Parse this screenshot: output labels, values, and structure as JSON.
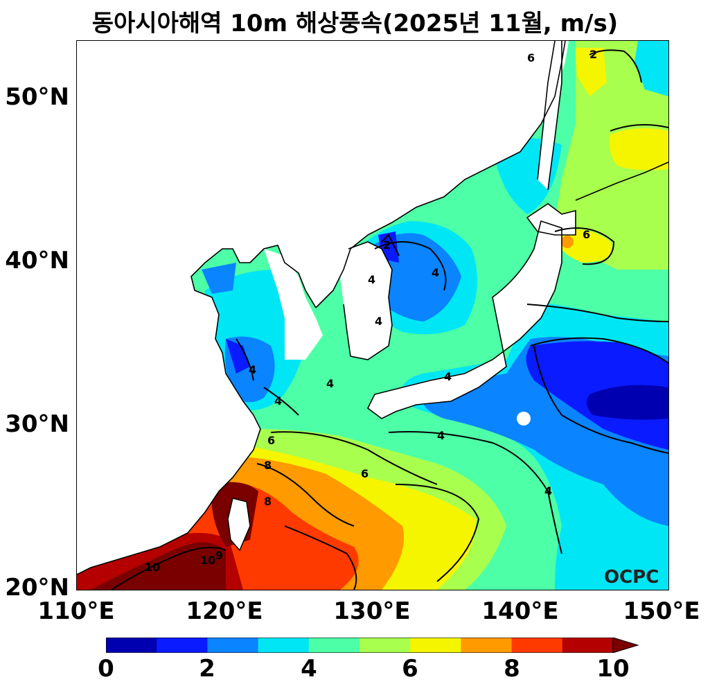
{
  "title": "동아시아해역 10m 해상풍속(2025년 11월, m/s)",
  "map": {
    "lon_range": [
      110,
      150
    ],
    "lat_range": [
      20,
      53.5
    ],
    "xticks": [
      "110°E",
      "120°E",
      "130°E",
      "140°E",
      "150°E"
    ],
    "yticks": [
      "20°N",
      "30°N",
      "40°N",
      "50°N"
    ],
    "contour_labels": [
      "2",
      "2",
      "4",
      "4",
      "4",
      "4",
      "4",
      "4",
      "4",
      "4",
      "4",
      "6",
      "6",
      "6",
      "6",
      "8",
      "8",
      "10",
      "10",
      "9"
    ],
    "logo": "OCPC"
  },
  "colorbar": {
    "colors": [
      "#0000b0",
      "#0a1bff",
      "#0a84ff",
      "#00e6f5",
      "#4dffa6",
      "#a8ff4d",
      "#f5f500",
      "#ff9a00",
      "#ff3a00",
      "#b50000"
    ],
    "extend_color": "#7a0000",
    "tick_labels": [
      "0",
      "2",
      "4",
      "6",
      "8",
      "10"
    ]
  }
}
